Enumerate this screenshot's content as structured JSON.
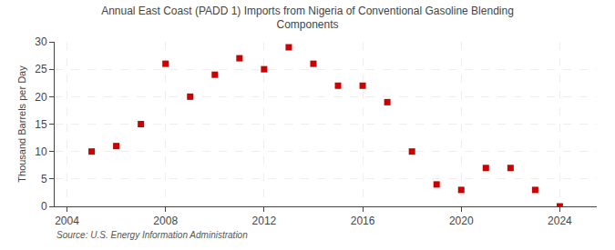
{
  "chart_data": {
    "type": "scatter",
    "title": "Annual East Coast (PADD 1) Imports from Nigeria of Conventional Gasoline Blending\nComponents",
    "ylabel": "Thousand Barrels per Day",
    "annotations": [
      "Source: U.S. Energy Information Administration"
    ],
    "x": [
      2005,
      2006,
      2007,
      2008,
      2009,
      2010,
      2011,
      2012,
      2013,
      2014,
      2015,
      2016,
      2017,
      2018,
      2019,
      2020,
      2021,
      2022,
      2023,
      2024
    ],
    "values": [
      10,
      11,
      15,
      26,
      20,
      24,
      27,
      25,
      29,
      26,
      22,
      22,
      19,
      10,
      4,
      3,
      7,
      7,
      3,
      0
    ],
    "color": "#cc0000",
    "marker": "square",
    "xlim": [
      2003.5,
      2025.5
    ],
    "ylim": [
      0,
      30
    ],
    "xticks": [
      2004,
      2008,
      2012,
      2016,
      2020,
      2024
    ],
    "yticks": [
      0,
      5,
      10,
      15,
      20,
      25,
      30
    ],
    "grid": true
  }
}
